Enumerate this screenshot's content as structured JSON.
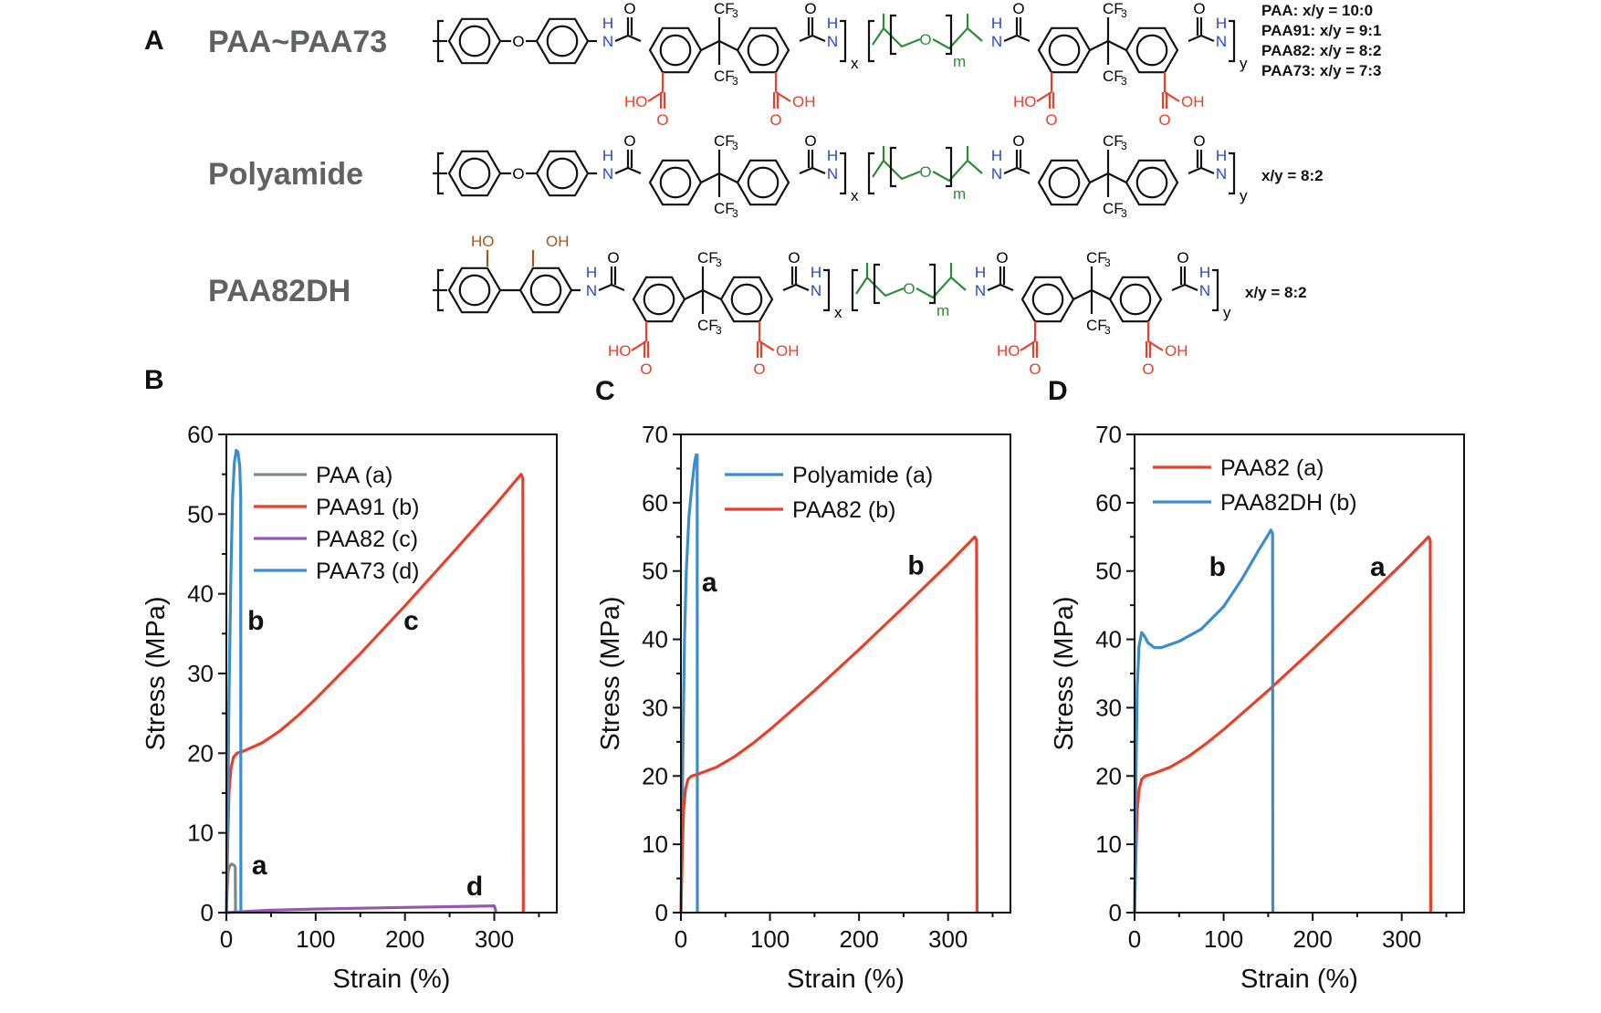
{
  "panel_A": {
    "letter": "A",
    "rows": [
      {
        "name": "PAA~PAA73",
        "variant": "fluoro",
        "ratios": [
          "PAA: x/y = 10:0",
          "PAA91: x/y = 9:1",
          "PAA82: x/y = 8:2",
          "PAA73: x/y = 7:3"
        ]
      },
      {
        "name": "Polyamide",
        "variant": "plain",
        "ratios": [
          "x/y = 8:2"
        ]
      },
      {
        "name": "PAA82DH",
        "variant": "dihydroxy",
        "ratios": [
          "x/y = 8:2"
        ]
      }
    ],
    "atoms": {
      "O": "O",
      "H": "H",
      "N": "N",
      "CF3": "CF",
      "three": "3",
      "HO": "HO",
      "OH": "OH",
      "x": "x",
      "y": "y",
      "m": "m"
    },
    "colors": {
      "amide_n": "#2f47c6",
      "carboxyl": "#e8402a",
      "ether_segment": "#2e8b3a",
      "hydroxyl": "#9a5a22",
      "bond": "#111111"
    }
  },
  "chart_data": [
    {
      "panel": "B",
      "type": "line",
      "xlabel": "Strain (%)",
      "ylabel": "Stress (MPa)",
      "xlim": [
        0,
        370
      ],
      "ylim": [
        0,
        60
      ],
      "xticks": [
        0,
        100,
        200,
        300
      ],
      "yticks": [
        0,
        10,
        20,
        30,
        40,
        50,
        60
      ],
      "legend_position": "top-left",
      "series": [
        {
          "name": "PAA (a)",
          "color": "#7d8a8a",
          "points": [
            [
              0,
              0
            ],
            [
              1,
              3
            ],
            [
              2,
              5.2
            ],
            [
              4,
              5.9
            ],
            [
              6,
              6.1
            ],
            [
              9,
              5.9
            ],
            [
              10,
              5.7
            ],
            [
              10.2,
              0
            ]
          ]
        },
        {
          "name": "PAA91 (b)",
          "color": "#e8402a",
          "points": [
            [
              0,
              0
            ],
            [
              1.5,
              9
            ],
            [
              3,
              15
            ],
            [
              5,
              18
            ],
            [
              8,
              19.5
            ],
            [
              12,
              20
            ],
            [
              20,
              20.3
            ],
            [
              40,
              21.3
            ],
            [
              60,
              22.8
            ],
            [
              80,
              24.7
            ],
            [
              100,
              26.8
            ],
            [
              150,
              32.5
            ],
            [
              200,
              38.5
            ],
            [
              250,
              44.7
            ],
            [
              300,
              51
            ],
            [
              330,
              55
            ],
            [
              332,
              54.5
            ],
            [
              332.5,
              0
            ]
          ]
        },
        {
          "name": "PAA82 (c)",
          "color": "#9656b4",
          "points": [
            [
              0,
              0
            ],
            [
              15,
              0.1
            ],
            [
              50,
              0.3
            ],
            [
              100,
              0.45
            ],
            [
              150,
              0.55
            ],
            [
              200,
              0.65
            ],
            [
              250,
              0.75
            ],
            [
              300,
              0.85
            ],
            [
              301,
              0.5
            ],
            [
              302,
              0
            ]
          ]
        },
        {
          "name": "PAA73 (d)",
          "color": "#3c8dc9",
          "points": [
            [
              0,
              0
            ],
            [
              1.5,
              12
            ],
            [
              3,
              27
            ],
            [
              5,
              42
            ],
            [
              7,
              52
            ],
            [
              9,
              56.5
            ],
            [
              11,
              58
            ],
            [
              13,
              57.8
            ],
            [
              15,
              56
            ],
            [
              16,
              52
            ],
            [
              16.3,
              0
            ]
          ]
        }
      ],
      "annotations": [
        {
          "text": "b",
          "x": 33,
          "y": 35.5
        },
        {
          "text": "c",
          "x": 207,
          "y": 35.5
        },
        {
          "text": "a",
          "x": 37,
          "y": 4.8
        },
        {
          "text": "d",
          "x": 278,
          "y": 2.2
        }
      ]
    },
    {
      "panel": "C",
      "type": "line",
      "xlabel": "Strain (%)",
      "ylabel": "Stress (MPa)",
      "xlim": [
        0,
        370
      ],
      "ylim": [
        0,
        70
      ],
      "xticks": [
        0,
        100,
        200,
        300
      ],
      "yticks": [
        0,
        10,
        20,
        30,
        40,
        50,
        60,
        70
      ],
      "legend_position": "top-center",
      "series": [
        {
          "name": "Polyamide (a)",
          "color": "#3c8dc9",
          "points": [
            [
              0,
              0
            ],
            [
              1,
              10
            ],
            [
              2,
              22
            ],
            [
              4,
              40
            ],
            [
              6,
              50
            ],
            [
              9,
              58
            ],
            [
              12,
              62
            ],
            [
              15,
              65.5
            ],
            [
              17,
              67
            ],
            [
              18.2,
              67
            ],
            [
              18.5,
              0
            ]
          ]
        },
        {
          "name": "PAA82 (b)",
          "color": "#e8402a",
          "points": [
            [
              0,
              0
            ],
            [
              1.5,
              9
            ],
            [
              3,
              15
            ],
            [
              5,
              18
            ],
            [
              8,
              19.5
            ],
            [
              12,
              20
            ],
            [
              20,
              20.3
            ],
            [
              40,
              21.3
            ],
            [
              60,
              22.8
            ],
            [
              80,
              24.7
            ],
            [
              100,
              26.8
            ],
            [
              150,
              32.5
            ],
            [
              200,
              38.5
            ],
            [
              250,
              44.7
            ],
            [
              300,
              51
            ],
            [
              330,
              55
            ],
            [
              332,
              54.5
            ],
            [
              332.5,
              0
            ]
          ]
        }
      ],
      "annotations": [
        {
          "text": "a",
          "x": 32,
          "y": 47
        },
        {
          "text": "b",
          "x": 264,
          "y": 49.5
        }
      ]
    },
    {
      "panel": "D",
      "type": "line",
      "xlabel": "Strain (%)",
      "ylabel": "Stress (MPa)",
      "xlim": [
        0,
        370
      ],
      "ylim": [
        0,
        70
      ],
      "xticks": [
        0,
        100,
        200,
        300
      ],
      "yticks": [
        0,
        10,
        20,
        30,
        40,
        50,
        60,
        70
      ],
      "legend_position": "top-left",
      "series": [
        {
          "name": "PAA82 (a)",
          "color": "#e8402a",
          "points": [
            [
              0,
              0
            ],
            [
              1.5,
              9
            ],
            [
              3,
              15
            ],
            [
              5,
              18
            ],
            [
              8,
              19.5
            ],
            [
              12,
              20
            ],
            [
              20,
              20.3
            ],
            [
              40,
              21.3
            ],
            [
              60,
              22.8
            ],
            [
              80,
              24.7
            ],
            [
              100,
              26.8
            ],
            [
              150,
              32.5
            ],
            [
              200,
              38.5
            ],
            [
              250,
              44.7
            ],
            [
              300,
              51
            ],
            [
              330,
              55
            ],
            [
              332,
              54.5
            ],
            [
              332.5,
              0
            ]
          ]
        },
        {
          "name": "PAA82DH (b)",
          "color": "#3c8dc9",
          "points": [
            [
              0,
              0
            ],
            [
              1.5,
              20
            ],
            [
              3,
              33
            ],
            [
              5,
              39
            ],
            [
              8,
              41
            ],
            [
              11,
              40.5
            ],
            [
              15,
              39.5
            ],
            [
              22,
              38.8
            ],
            [
              30,
              38.8
            ],
            [
              50,
              39.7
            ],
            [
              75,
              41.5
            ],
            [
              100,
              44.8
            ],
            [
              120,
              48.7
            ],
            [
              140,
              53.2
            ],
            [
              150,
              55.3
            ],
            [
              153,
              56
            ],
            [
              155,
              55.5
            ],
            [
              155.3,
              0
            ]
          ]
        }
      ],
      "annotations": [
        {
          "text": "b",
          "x": 93,
          "y": 49.3
        },
        {
          "text": "a",
          "x": 273,
          "y": 49.3
        }
      ]
    }
  ]
}
